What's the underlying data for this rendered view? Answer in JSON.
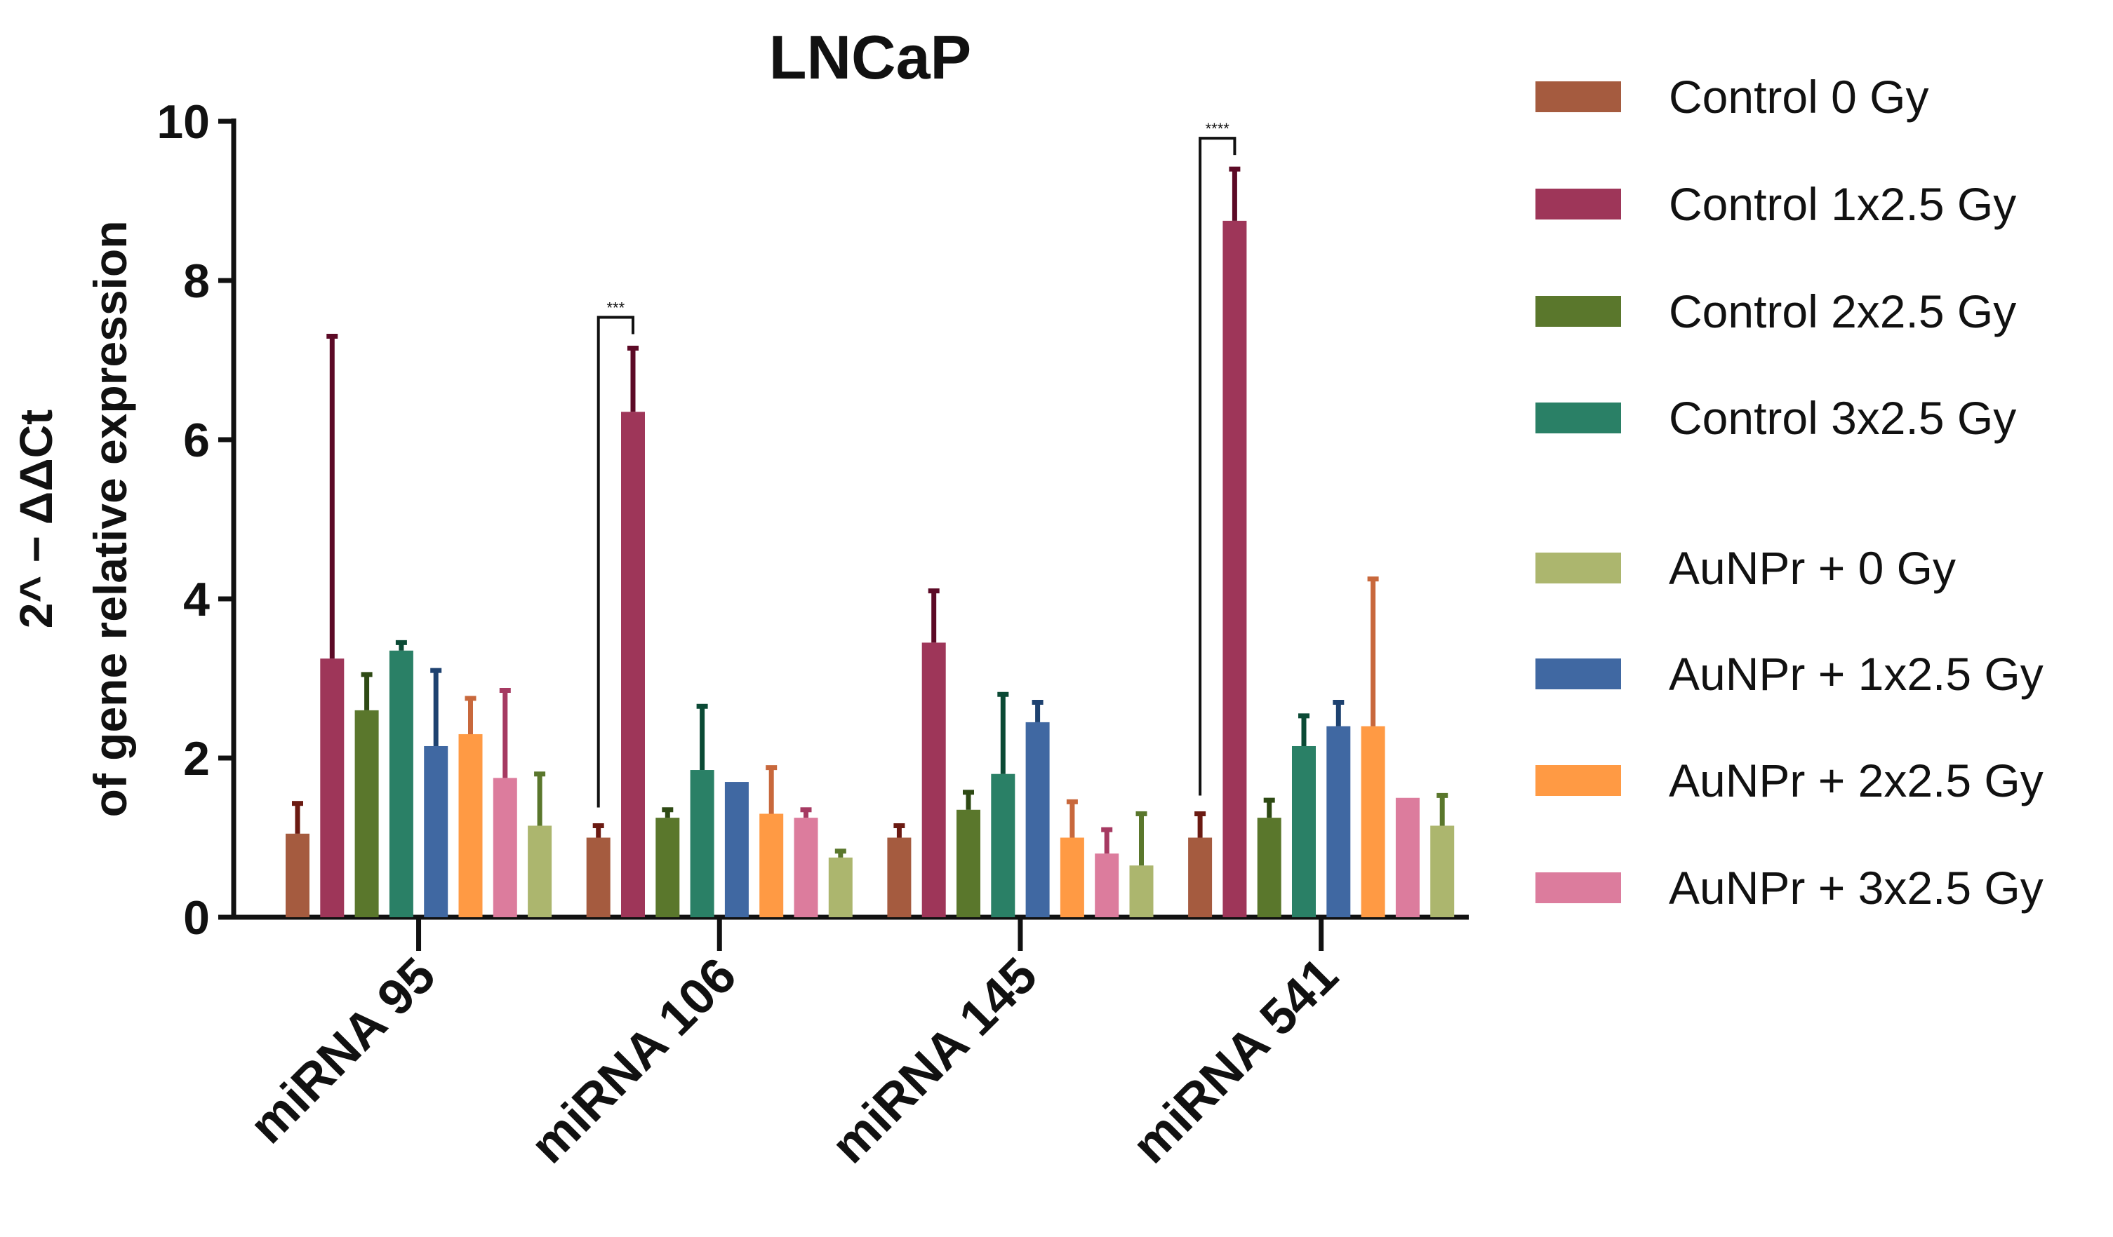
{
  "chart_data": {
    "type": "bar",
    "title": "LNCaP",
    "xlabel": "",
    "ylabel_line1": "2^ − ΔΔCt",
    "ylabel_line2": "of gene relative expression",
    "ylim": [
      0,
      10
    ],
    "yticks": [
      "0",
      "2",
      "4",
      "6",
      "8",
      "10"
    ],
    "categories": [
      "miRNA 95",
      "miRNA 106",
      "miRNA 145",
      "miRNA 541"
    ],
    "legend_position": "right",
    "series": [
      {
        "name": "Control 0 Gy",
        "color": "#A55B3F",
        "error_color": "#6B1A12",
        "values": [
          1.05,
          1.0,
          1.0,
          1.0
        ],
        "errors": [
          0.38,
          0.15,
          0.15,
          0.3
        ]
      },
      {
        "name": "Control 1x2.5 Gy",
        "color": "#9E3659",
        "error_color": "#5C0A26",
        "values": [
          3.25,
          6.35,
          3.45,
          8.75
        ],
        "errors": [
          4.05,
          0.8,
          0.65,
          0.65
        ]
      },
      {
        "name": "Control 2x2.5 Gy",
        "color": "#5A772C",
        "error_color": "#2E4A14",
        "values": [
          2.6,
          1.25,
          1.35,
          1.25
        ],
        "errors": [
          0.45,
          0.1,
          0.22,
          0.22
        ]
      },
      {
        "name": "Control 3x2.5 Gy",
        "color": "#2A8066",
        "error_color": "#0B4A35",
        "values": [
          3.35,
          1.85,
          1.8,
          2.15
        ],
        "errors": [
          0.1,
          0.8,
          1.0,
          0.38
        ]
      },
      {
        "name": "AuNPr + 0 Gy",
        "color": "#ACB66E",
        "error_color": "#5A772C",
        "values": [
          1.15,
          0.75,
          0.65,
          1.15
        ],
        "errors": [
          0.65,
          0.08,
          0.65,
          0.38
        ]
      },
      {
        "name": "AuNPr + 1x2.5 Gy",
        "color": "#4068A2",
        "error_color": "#1E4270",
        "values": [
          2.15,
          1.7,
          2.45,
          2.4
        ],
        "errors": [
          0.95,
          0.0,
          0.25,
          0.3
        ]
      },
      {
        "name": "AuNPr + 2x2.5 Gy",
        "color": "#FF9A44",
        "error_color": "#C8683C",
        "values": [
          2.3,
          1.3,
          1.0,
          2.4
        ],
        "errors": [
          0.45,
          0.58,
          0.45,
          1.85
        ]
      },
      {
        "name": "AuNPr + 3x2.5 Gy",
        "color": "#DC7C9D",
        "error_color": "#A63A62",
        "values": [
          1.75,
          1.25,
          0.8,
          1.5
        ],
        "errors": [
          1.1,
          0.1,
          0.3,
          0.0
        ]
      }
    ],
    "bar_order": [
      0,
      1,
      2,
      3,
      5,
      6,
      7,
      4
    ],
    "significance": [
      {
        "category_index": 1,
        "from_series": 0,
        "to_series": 1,
        "label": "***"
      },
      {
        "category_index": 3,
        "from_series": 0,
        "to_series": 1,
        "label": "****"
      }
    ]
  }
}
